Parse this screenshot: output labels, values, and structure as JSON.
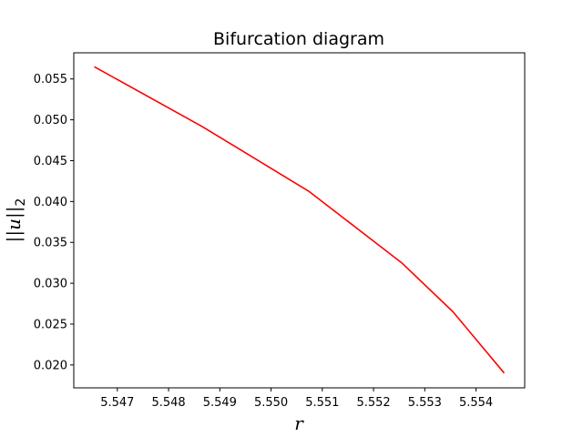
{
  "chart_data": {
    "type": "line",
    "title": "Bifurcation diagram",
    "xlabel": "r",
    "ylabel_main": "||u||",
    "ylabel_sub": "2",
    "xlim": [
      5.54615,
      5.55495
    ],
    "ylim": [
      0.0172,
      0.0582
    ],
    "xticks": [
      5.547,
      5.548,
      5.549,
      5.55,
      5.551,
      5.552,
      5.553,
      5.554
    ],
    "xtick_labels": [
      "5.547",
      "5.548",
      "5.549",
      "5.550",
      "5.551",
      "5.552",
      "5.553",
      "5.554"
    ],
    "yticks": [
      0.02,
      0.025,
      0.03,
      0.035,
      0.04,
      0.045,
      0.05,
      0.055
    ],
    "ytick_labels": [
      "0.020",
      "0.025",
      "0.030",
      "0.035",
      "0.040",
      "0.045",
      "0.050",
      "0.055"
    ],
    "grid": false,
    "series": [
      {
        "color": "#ff0000",
        "x": [
          5.54655,
          5.54865,
          5.55075,
          5.55255,
          5.55355,
          5.55455
        ],
        "y": [
          0.0565,
          0.0492,
          0.0412,
          0.0325,
          0.0265,
          0.019
        ]
      }
    ]
  }
}
